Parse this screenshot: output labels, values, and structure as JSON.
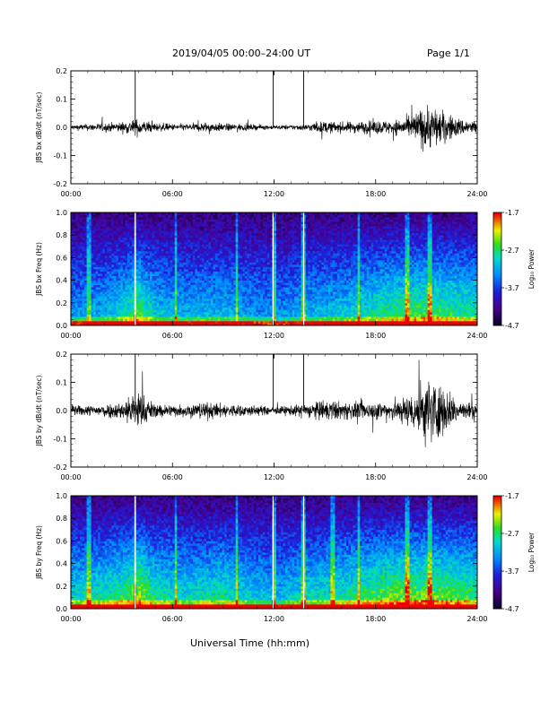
{
  "header": {
    "title": "2019/04/05  00:00–24:00 UT",
    "page": "Page 1/1"
  },
  "x_axis_label": "Universal Time (hh:mm)",
  "chart_data": [
    {
      "type": "line",
      "ylabel": "JBS bx dB/dt (nT/sec)",
      "xlim": [
        "00:00",
        "24:00"
      ],
      "ylim": [
        -0.2,
        0.2
      ],
      "x_ticks": [
        "00:00",
        "06:00",
        "12:00",
        "18:00",
        "24:00"
      ],
      "y_ticks": [
        "-0.2",
        "-0.1",
        "0.0",
        "0.1",
        "0.2"
      ],
      "envelope_hours": [
        0,
        1,
        2,
        3,
        3.5,
        4,
        4.5,
        5,
        6,
        7,
        8,
        9,
        10,
        11,
        12,
        13,
        14,
        14.5,
        15,
        16,
        17,
        18,
        19,
        20,
        20.5,
        21,
        21.5,
        22,
        22.5,
        23,
        24
      ],
      "envelope_amp": [
        0.015,
        0.02,
        0.025,
        0.03,
        0.04,
        0.05,
        0.035,
        0.025,
        0.02,
        0.02,
        0.03,
        0.022,
        0.02,
        0.015,
        0.012,
        0.015,
        0.02,
        0.03,
        0.035,
        0.03,
        0.035,
        0.04,
        0.04,
        0.06,
        0.1,
        0.13,
        0.12,
        0.09,
        0.07,
        0.05,
        0.04
      ],
      "spikes": [
        {
          "hour": 3.8,
          "from": 0.0,
          "to": 0.2
        },
        {
          "hour": 11.95,
          "from": 0.0,
          "to": 0.2
        },
        {
          "hour": 13.75,
          "from": 0.0,
          "to": 0.2
        }
      ]
    },
    {
      "type": "heatmap",
      "ylabel": "JBS bx Freq (Hz)",
      "xlim": [
        "00:00",
        "24:00"
      ],
      "ylim": [
        0.0,
        1.0
      ],
      "x_ticks": [
        "00:00",
        "06:00",
        "12:00",
        "18:00",
        "24:00"
      ],
      "y_ticks": [
        "0.0",
        "0.2",
        "0.4",
        "0.6",
        "0.8",
        "1.0"
      ],
      "colorbar": {
        "min": -4.7,
        "max": -1.7,
        "ticks": [
          "-1.7",
          "-2.7",
          "-3.7",
          "-4.7"
        ],
        "label": "Log₁₀ Power"
      },
      "activity_hours": [
        0,
        2,
        3.5,
        4,
        5,
        7,
        9,
        11,
        12,
        13,
        14,
        16,
        17,
        18,
        19,
        20,
        21,
        22,
        23,
        24
      ],
      "activity_level": [
        0.15,
        0.2,
        0.35,
        0.45,
        0.25,
        0.2,
        0.22,
        0.15,
        0.12,
        0.15,
        0.2,
        0.25,
        0.3,
        0.35,
        0.4,
        0.42,
        0.45,
        0.42,
        0.38,
        0.35
      ],
      "vertical_streaks": [
        1.1,
        3.8,
        6.2,
        9.8,
        11.95,
        13.75,
        17.0,
        19.9,
        21.2
      ]
    },
    {
      "type": "line",
      "ylabel": "JBS by dB/dt (nT/sec)",
      "xlim": [
        "00:00",
        "24:00"
      ],
      "ylim": [
        -0.2,
        0.2
      ],
      "x_ticks": [
        "00:00",
        "06:00",
        "12:00",
        "18:00",
        "24:00"
      ],
      "y_ticks": [
        "-0.2",
        "-0.1",
        "0.0",
        "0.1",
        "0.2"
      ],
      "envelope_hours": [
        0,
        1,
        2,
        3,
        3.5,
        4,
        4.5,
        5,
        6,
        7,
        8,
        9,
        10,
        11,
        12,
        13,
        14,
        14.5,
        15,
        16,
        17,
        18,
        19,
        20,
        20.5,
        21,
        21.5,
        22,
        22.5,
        23,
        24
      ],
      "envelope_amp": [
        0.03,
        0.03,
        0.04,
        0.05,
        0.09,
        0.12,
        0.07,
        0.04,
        0.035,
        0.04,
        0.05,
        0.04,
        0.035,
        0.03,
        0.02,
        0.03,
        0.04,
        0.05,
        0.06,
        0.05,
        0.05,
        0.05,
        0.06,
        0.09,
        0.15,
        0.2,
        0.18,
        0.14,
        0.1,
        0.06,
        0.04
      ],
      "spikes": [
        {
          "hour": 3.8,
          "from": 0.0,
          "to": 0.2
        },
        {
          "hour": 11.95,
          "from": 0.0,
          "to": 0.2
        },
        {
          "hour": 13.75,
          "from": 0.0,
          "to": 0.2
        }
      ]
    },
    {
      "type": "heatmap",
      "ylabel": "JBS by Freq (Hz)",
      "xlim": [
        "00:00",
        "24:00"
      ],
      "ylim": [
        0.0,
        1.0
      ],
      "x_ticks": [
        "00:00",
        "06:00",
        "12:00",
        "18:00",
        "24:00"
      ],
      "y_ticks": [
        "0.0",
        "0.2",
        "0.4",
        "0.6",
        "0.8",
        "1.0"
      ],
      "colorbar": {
        "min": -4.7,
        "max": -1.7,
        "ticks": [
          "-1.7",
          "-2.7",
          "-3.7",
          "-4.7"
        ],
        "label": "Log₁₀ Power"
      },
      "activity_hours": [
        0,
        2,
        3.5,
        4,
        5,
        7,
        9,
        11,
        12,
        13,
        14,
        16,
        17,
        18,
        19,
        20,
        21,
        22,
        23,
        24
      ],
      "activity_level": [
        0.3,
        0.35,
        0.45,
        0.55,
        0.35,
        0.3,
        0.35,
        0.25,
        0.2,
        0.25,
        0.3,
        0.35,
        0.4,
        0.45,
        0.5,
        0.5,
        0.5,
        0.48,
        0.45,
        0.4
      ],
      "vertical_streaks": [
        1.1,
        3.8,
        6.2,
        9.8,
        11.95,
        13.75,
        15.5,
        17.0,
        19.9,
        21.2
      ]
    }
  ]
}
